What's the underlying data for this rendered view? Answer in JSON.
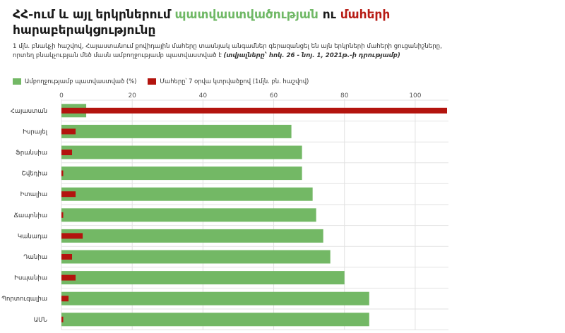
{
  "title": {
    "part1": "ՀՀ-ում և այլ երկրներում ",
    "part2": "պատվաստվածության",
    "part3": " ու ",
    "part4": "մահերի",
    "part5": " հարաբերակցությունը"
  },
  "subtitle": {
    "text": "1 մլն. բնակչի հաշվով, Հայաստանում քովիդային մահերը տասնյակ անգամներ գերազանցել են այն երկրների մահերի ցուցանիշները, որտեղ բնակչության մեծ մասն ամբողջությամբ պատվաստված է ",
    "note": "(տվյալները՝ հոկ. 26 - նոյ. 1, 2021թ.-ի դրությամբ)"
  },
  "colors": {
    "vaccinated": "#73b865",
    "deaths": "#b3140e",
    "grid": "#e2e2e2"
  },
  "chart_data": {
    "type": "bar",
    "orientation": "horizontal",
    "categories": [
      "Հայաստան",
      "Իսրայել",
      "Ֆրանսիա",
      "Շվեդիա",
      "Իտալիա",
      "Ճապոնիա",
      "Կանադա",
      "Դանիա",
      "Իսպանիա",
      "Պորտուգալիա",
      "ԱՄՆ"
    ],
    "series": [
      {
        "name": "Ամբողջությամբ պատվաստված (%)",
        "color": "#73b865",
        "values": [
          7,
          65,
          68,
          68,
          71,
          72,
          74,
          76,
          80,
          87,
          87
        ]
      },
      {
        "name": "Մահերը՝ 7 օրվա կտրվածքով (1մլն. բն. հաշվով)",
        "color": "#b3140e",
        "values": [
          109,
          4,
          3,
          0.5,
          4,
          0.5,
          6,
          3,
          4,
          2,
          0.5
        ]
      }
    ],
    "xlim": [
      0,
      109
    ],
    "xticks": [
      0,
      20,
      40,
      60,
      80,
      100
    ],
    "grid": true,
    "legend": "top-left"
  }
}
